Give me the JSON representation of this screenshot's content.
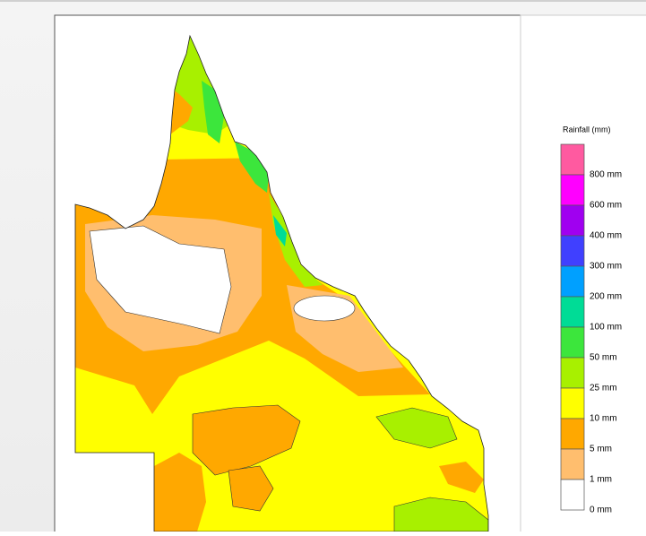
{
  "legend": {
    "title": "Rainfall (mm)",
    "items": [
      {
        "label": "800 mm",
        "color": "#ff5aa0"
      },
      {
        "label": "600 mm",
        "color": "#ff00ff"
      },
      {
        "label": "400 mm",
        "color": "#a000f0"
      },
      {
        "label": "300 mm",
        "color": "#4040ff"
      },
      {
        "label": "200 mm",
        "color": "#00a0ff"
      },
      {
        "label": "100 mm",
        "color": "#00dc96"
      },
      {
        "label": "50 mm",
        "color": "#3ce63c"
      },
      {
        "label": "25 mm",
        "color": "#a8f000"
      },
      {
        "label": "10 mm",
        "color": "#ffff00"
      },
      {
        "label": "5 mm",
        "color": "#ffa800"
      },
      {
        "label": "1 mm",
        "color": "#ffbe6e"
      },
      {
        "label": "0 mm",
        "color": "#ffffff"
      }
    ]
  }
}
